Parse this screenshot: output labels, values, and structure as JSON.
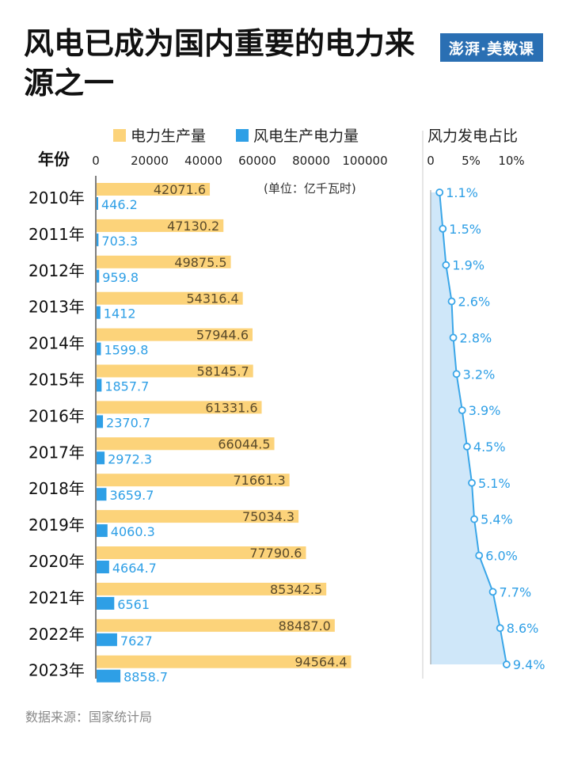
{
  "header": {
    "title": "风电已成为国内重要的电力来源之一",
    "logo_text": "澎湃·美数课"
  },
  "footer": {
    "source": "数据来源：国家统计局"
  },
  "colors": {
    "production": "#fcd37a",
    "wind": "#2e9fe6",
    "share_line": "#3aa6e8",
    "share_fill": "#cfe7f9",
    "label_blue": "#2e9fe6",
    "label_dark": "#5a4a2a"
  },
  "chart_data": [
    {
      "type": "bar",
      "orientation": "horizontal",
      "y_axis_title": "年份",
      "unit_note": "(单位：亿千瓦时)",
      "xlim": [
        0,
        100000
      ],
      "x_ticks": [
        0,
        20000,
        40000,
        60000,
        80000,
        100000
      ],
      "categories": [
        "2010年",
        "2011年",
        "2012年",
        "2013年",
        "2014年",
        "2015年",
        "2016年",
        "2017年",
        "2018年",
        "2019年",
        "2020年",
        "2021年",
        "2022年",
        "2023年"
      ],
      "series": [
        {
          "name": "电力生产量",
          "values": [
            42071.6,
            47130.2,
            49875.5,
            54316.4,
            57944.6,
            58145.7,
            61331.6,
            66044.5,
            71661.3,
            75034.3,
            77790.6,
            85342.5,
            88487.0,
            94564.4
          ],
          "labels": [
            "42071.6",
            "47130.2",
            "49875.5",
            "54316.4",
            "57944.6",
            "58145.7",
            "61331.6",
            "66044.5",
            "71661.3",
            "75034.3",
            "77790.6",
            "85342.5",
            "88487.0",
            "94564.4"
          ]
        },
        {
          "name": "风电生产电力量",
          "values": [
            446.2,
            703.3,
            959.8,
            1412,
            1599.8,
            1857.7,
            2370.7,
            2972.3,
            3659.7,
            4060.3,
            4664.7,
            6561,
            7627,
            8858.7
          ],
          "labels": [
            "446.2",
            "703.3",
            "959.8",
            "1412",
            "1599.8",
            "1857.7",
            "2370.7",
            "2972.3",
            "3659.7",
            "4060.3",
            "4664.7",
            "6561",
            "7627",
            "8858.7"
          ]
        }
      ],
      "legend": "top"
    },
    {
      "type": "area",
      "orientation": "vertical",
      "title": "风力发电占比",
      "xlim": [
        0,
        10
      ],
      "x_ticks": [
        "0",
        "5%",
        "10%"
      ],
      "categories": [
        "2010年",
        "2011年",
        "2012年",
        "2013年",
        "2014年",
        "2015年",
        "2016年",
        "2017年",
        "2018年",
        "2019年",
        "2020年",
        "2021年",
        "2022年",
        "2023年"
      ],
      "values": [
        1.1,
        1.5,
        1.9,
        2.6,
        2.8,
        3.2,
        3.9,
        4.5,
        5.1,
        5.4,
        6.0,
        7.7,
        8.6,
        9.4
      ],
      "labels": [
        "1.1%",
        "1.5%",
        "1.9%",
        "2.6%",
        "2.8%",
        "3.2%",
        "3.9%",
        "4.5%",
        "5.1%",
        "5.4%",
        "6.0%",
        "7.7%",
        "8.6%",
        "9.4%"
      ]
    }
  ]
}
